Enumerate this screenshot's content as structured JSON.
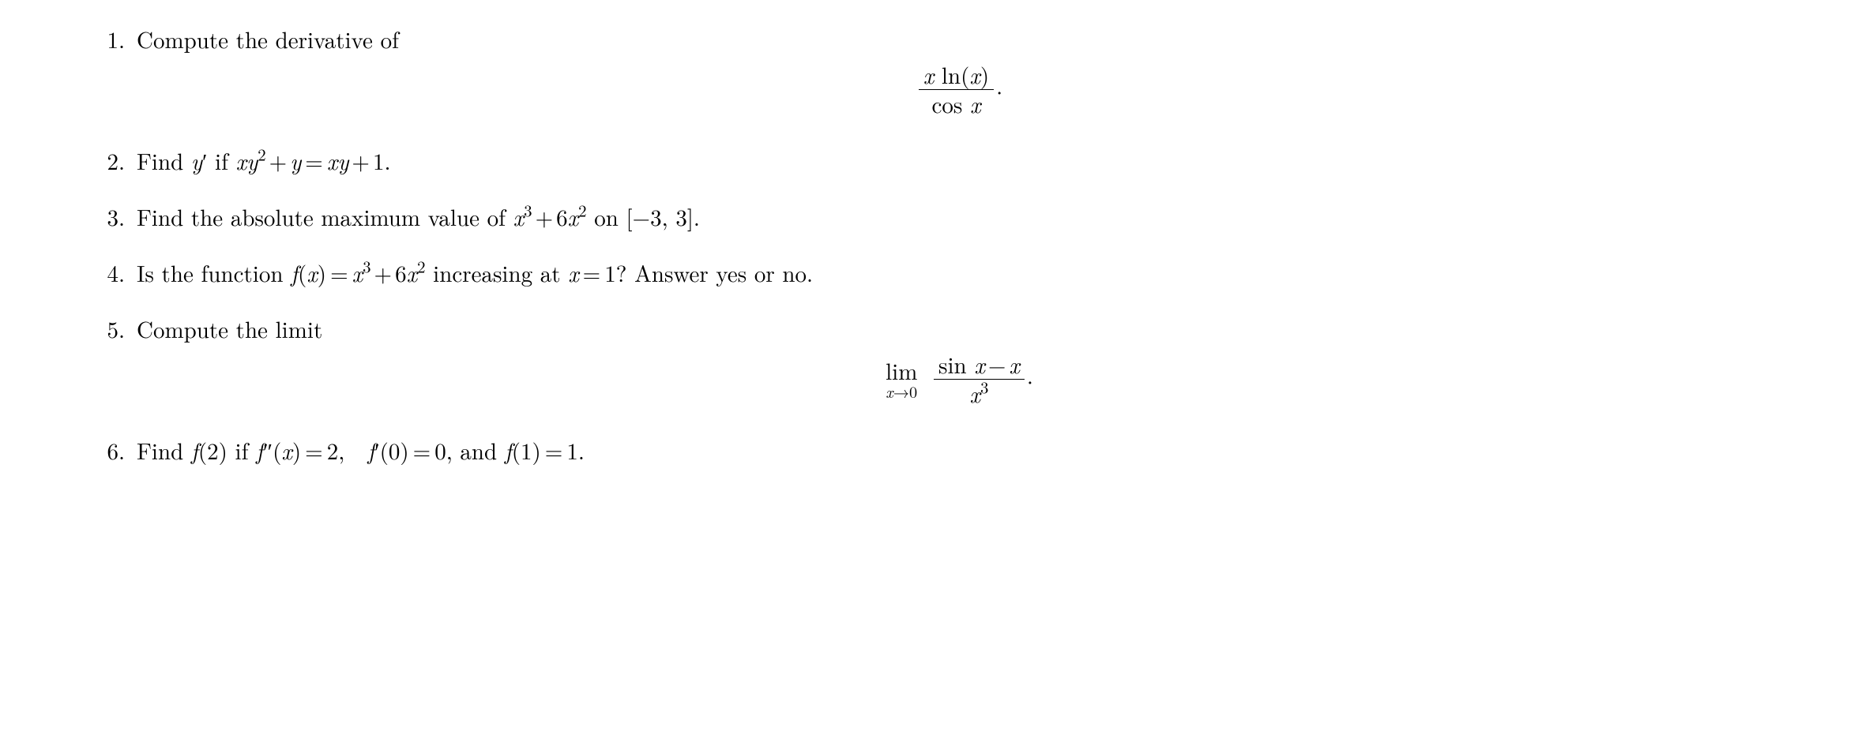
{
  "document": {
    "background_color": "#ffffff",
    "text_color": "#000000",
    "font_family_serif": "Computer Modern / Latin Modern",
    "base_font_size_pt": 22
  },
  "problems": [
    {
      "number": "1.",
      "text_before": "Compute the derivative of",
      "display_formula": {
        "type": "fraction",
        "numerator": "x ln(x)",
        "denominator": "cos x",
        "trailing_punct": "."
      }
    },
    {
      "number": "2.",
      "text_parts": {
        "t1": "Find ",
        "sym_yprime": "y′",
        "t2": " if ",
        "eq_lhs": "xy² + y",
        "eq_mid": " = ",
        "eq_rhs": "xy + 1.",
        "full_inline": "xy² + y = xy + 1."
      }
    },
    {
      "number": "3.",
      "text_parts": {
        "t1": "Find the absolute maximum value of ",
        "expr": "x³ + 6x²",
        "t2": " on ",
        "interval": "[−3, 3].",
        "interval_lo": "−3",
        "interval_hi": "3"
      }
    },
    {
      "number": "4.",
      "text_parts": {
        "t1": "Is the function ",
        "fx": "f(x) = x³ + 6x²",
        "t2": " increasing at ",
        "xeq": "x = 1?",
        "t3": "  Answer yes or no."
      }
    },
    {
      "number": "5.",
      "text_before": "Compute the limit",
      "display_formula": {
        "type": "limit",
        "limit_var": "x→0",
        "lim_label": "lim",
        "fraction": {
          "numerator": "sin x − x",
          "denominator": "x³"
        },
        "trailing_punct": "."
      }
    },
    {
      "number": "6.",
      "text_parts": {
        "t1": "Find ",
        "f2": "f(2)",
        "t2": " if ",
        "cond1": "f″(x) = 2,",
        "cond2": " f′(0) = 0,",
        "t3": " and ",
        "cond3": "f(1) = 1."
      }
    }
  ]
}
